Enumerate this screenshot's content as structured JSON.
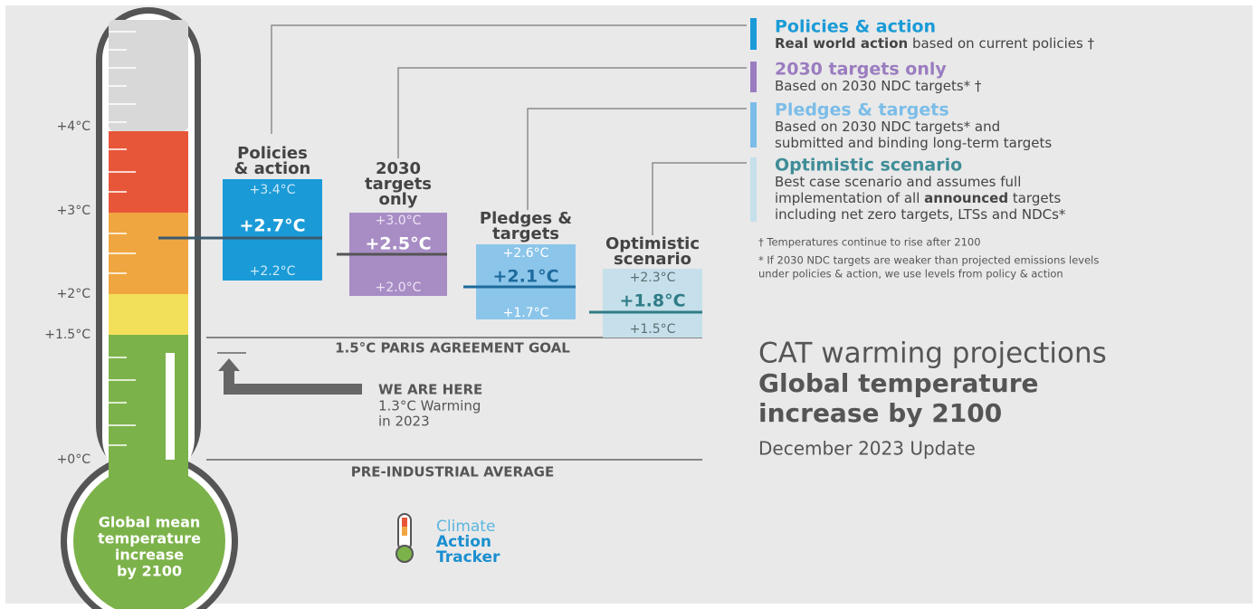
{
  "thermometer": {
    "axis_labels": [
      "+4°C",
      "+3°C",
      "+2°C",
      "+1.5°C",
      "+0°C"
    ],
    "label": [
      "Global mean",
      "temperature",
      "increase",
      "by 2100"
    ]
  },
  "scenarios": [
    {
      "title": [
        "Policies",
        "& action"
      ],
      "high": "+3.4°C",
      "central": "+2.7°C",
      "low": "+2.2°C"
    },
    {
      "title": [
        "2030",
        "targets",
        "only"
      ],
      "high": "+3.0°C",
      "central": "+2.5°C",
      "low": "+2.0°C"
    },
    {
      "title": [
        "Pledges &",
        "targets"
      ],
      "high": "+2.6°C",
      "central": "+2.1°C",
      "low": "+1.7°C"
    },
    {
      "title": [
        "Optimistic",
        "scenario"
      ],
      "high": "+2.3°C",
      "central": "+1.8°C",
      "low": "+1.5°C"
    }
  ],
  "legend": [
    {
      "title": "Policies & action",
      "lines": [
        [
          {
            "text": "Real world action",
            "bold": true
          },
          {
            "text": " based on current policies †"
          }
        ]
      ]
    },
    {
      "title": "2030 targets only",
      "lines": [
        [
          {
            "text": "Based on 2030 NDC targets* †"
          }
        ]
      ]
    },
    {
      "title": "Pledges & targets",
      "lines": [
        [
          {
            "text": "Based on 2030 NDC targets* and"
          }
        ],
        [
          {
            "text": "submitted and binding long-term targets"
          }
        ]
      ]
    },
    {
      "title": "Optimistic scenario",
      "lines": [
        [
          {
            "text": "Best case scenario and assumes full"
          }
        ],
        [
          {
            "text": "implementation of all "
          },
          {
            "text": "announced",
            "bold": true
          },
          {
            "text": " targets"
          }
        ],
        [
          {
            "text": "including net zero targets, LTSs and NDCs*"
          }
        ]
      ]
    }
  ],
  "footnotes": [
    "† Temperatures continue to rise after 2100",
    "* If 2030 NDC targets are weaker than projected emissions levels",
    "under policies & action, we use levels from policy & action"
  ],
  "paris_goal": "1.5°C PARIS AGREEMENT GOAL",
  "we_are_here": {
    "title": "WE ARE HERE",
    "lines": [
      "1.3°C Warming",
      "in 2023"
    ]
  },
  "pre_industrial": "PRE-INDUSTRIAL AVERAGE",
  "logo": [
    "Climate",
    "Action",
    "Tracker"
  ],
  "heading": {
    "line1": "CAT warming projections",
    "line2": "Global temperature",
    "line3": "increase by 2100",
    "update": "December 2023 Update"
  }
}
